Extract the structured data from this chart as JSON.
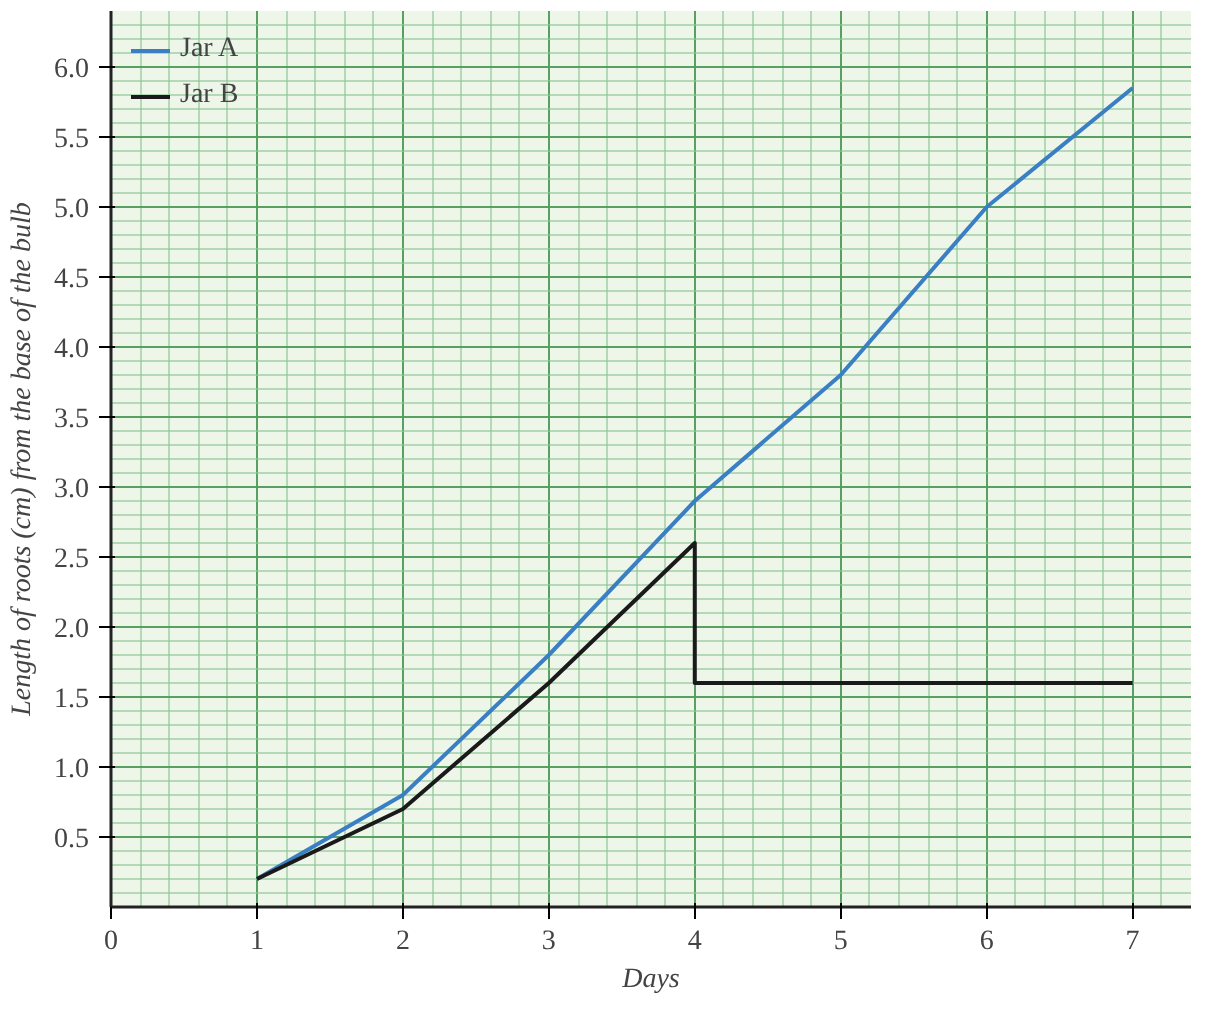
{
  "chart_data": {
    "type": "line",
    "xlabel": "Days",
    "ylabel": "Length of roots (cm) from the base of the bulb",
    "series": [
      {
        "name": "Jar A",
        "color": "#3a7fc4",
        "x": [
          1,
          2,
          3,
          4,
          5,
          6,
          7
        ],
        "values": [
          0.2,
          0.8,
          1.8,
          2.9,
          3.8,
          5.0,
          5.85
        ]
      },
      {
        "name": "Jar B",
        "color": "#1a1a1a",
        "x": [
          1,
          2,
          3,
          4,
          4,
          5,
          6,
          7
        ],
        "values": [
          0.2,
          0.7,
          1.6,
          2.6,
          1.6,
          1.6,
          1.6,
          1.6
        ]
      }
    ],
    "xlim": [
      0,
      7.4
    ],
    "ylim": [
      0,
      6.4
    ],
    "xticks": [
      0,
      1,
      2,
      3,
      4,
      5,
      6,
      7
    ],
    "yticks": [
      {
        "value": 0.5,
        "label": "0.5"
      },
      {
        "value": 1,
        "label": "1.0"
      },
      {
        "value": 1.5,
        "label": "1.5"
      },
      {
        "value": 2,
        "label": "2.0"
      },
      {
        "value": 2.5,
        "label": "2.5"
      },
      {
        "value": 3,
        "label": "3.0"
      },
      {
        "value": 3.5,
        "label": "3.5"
      },
      {
        "value": 4,
        "label": "4.0"
      },
      {
        "value": 4.5,
        "label": "4.5"
      },
      {
        "value": 5,
        "label": "5.0"
      },
      {
        "value": 5.5,
        "label": "5.5"
      },
      {
        "value": 6,
        "label": "6.0"
      }
    ],
    "grid": true,
    "legend": "top left",
    "line_style": "solid"
  }
}
